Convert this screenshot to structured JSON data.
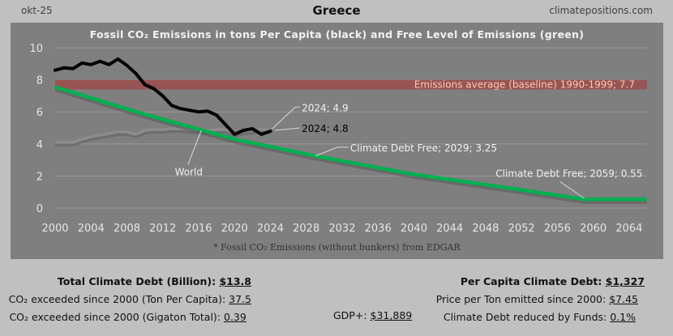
{
  "header": {
    "date": "okt-25",
    "country": "Greece",
    "site": "climatepositions.com"
  },
  "colors": {
    "panel": "#7f7f7f",
    "greece_line": "#000000",
    "world_line": "#8c8c8c",
    "free_line": "#00b050",
    "baseline_band": "#9b5050",
    "baseline_text": "#f8cbad"
  },
  "chart_data": {
    "type": "line",
    "title": "Fossil CO₂ Emissions in tons Per Capita (black) and Free Level of Emissions (green)",
    "xlabel": "",
    "ylabel": "",
    "xlim": [
      2000,
      2066
    ],
    "ylim": [
      0,
      10
    ],
    "x_ticks": [
      "2000",
      "2004",
      "2008",
      "2012",
      "2016",
      "2020",
      "2024",
      "2028",
      "2032",
      "2036",
      "2040",
      "2044",
      "2048",
      "2052",
      "2056",
      "2060",
      "2064"
    ],
    "y_ticks": [
      "0",
      "2",
      "4",
      "6",
      "8",
      "10"
    ],
    "grid": true,
    "series": [
      {
        "name": "Greece",
        "color": "#000000",
        "x": [
          2000,
          2001,
          2002,
          2003,
          2004,
          2005,
          2006,
          2007,
          2008,
          2009,
          2010,
          2011,
          2012,
          2013,
          2014,
          2015,
          2016,
          2017,
          2018,
          2019,
          2020,
          2021,
          2022,
          2023,
          2024
        ],
        "y": [
          8.6,
          8.75,
          8.7,
          9.05,
          8.95,
          9.15,
          8.95,
          9.3,
          8.9,
          8.4,
          7.7,
          7.45,
          7.0,
          6.4,
          6.2,
          6.1,
          6.0,
          6.05,
          5.8,
          5.2,
          4.6,
          4.85,
          4.95,
          4.6,
          4.8
        ]
      },
      {
        "name": "World",
        "color": "#8c8c8c",
        "x": [
          2000,
          2001,
          2002,
          2003,
          2004,
          2005,
          2006,
          2007,
          2008,
          2009,
          2010,
          2011,
          2012,
          2013,
          2014,
          2015,
          2016,
          2017,
          2018,
          2019,
          2020,
          2021,
          2022,
          2023,
          2024
        ],
        "y": [
          4.1,
          4.1,
          4.1,
          4.3,
          4.45,
          4.55,
          4.65,
          4.75,
          4.75,
          4.6,
          4.85,
          4.9,
          4.9,
          4.95,
          4.95,
          4.9,
          4.85,
          4.85,
          4.9,
          4.9,
          4.65,
          4.8,
          4.85,
          4.9,
          4.9
        ]
      },
      {
        "name": "Free Level of Emissions",
        "color": "#00b050",
        "x": [
          2000,
          2010,
          2020,
          2029,
          2040,
          2050,
          2059,
          2066
        ],
        "y": [
          7.55,
          5.85,
          4.3,
          3.25,
          2.1,
          1.3,
          0.55,
          0.55
        ]
      }
    ],
    "baseline": {
      "label": "Emissions average (baseline) 1990-1999; 7.7",
      "value": 7.7
    },
    "annotations": [
      {
        "id": "world",
        "text": "World",
        "x": 2016,
        "y": 4.9
      },
      {
        "id": "world2024",
        "text": "2024; 4.9",
        "x": 2024,
        "y": 4.9
      },
      {
        "id": "greece2024",
        "text": "2024; 4.8",
        "x": 2024,
        "y": 4.8
      },
      {
        "id": "free2029",
        "text": "Climate Debt Free; 2029; 3.25",
        "x": 2029,
        "y": 3.25
      },
      {
        "id": "free2059",
        "text": "Climate Debt Free; 2059; 0.55",
        "x": 2059,
        "y": 0.55
      }
    ],
    "footnote": "* Fossil CO₂ Emissions (without bunkers) from EDGAR"
  },
  "stats": {
    "total_debt_label": "Total Climate Debt (Billion):",
    "total_debt_value": "$13.8",
    "per_capita_exceeded_label": "CO₂ exceeded since 2000 (Ton Per Capita):",
    "per_capita_exceeded_value": "37.5",
    "gigaton_exceeded_label": "CO₂ exceeded since 2000 (Gigaton Total):",
    "gigaton_exceeded_value": "0.39",
    "gdp_label": "GDP+:",
    "gdp_value": "$31,889",
    "per_capita_debt_label": "Per Capita Climate Debt:",
    "per_capita_debt_value": "$1,327",
    "price_per_ton_label": "Price per Ton emitted since 2000:",
    "price_per_ton_value": "$7.45",
    "funds_label": "Climate Debt reduced by Funds:",
    "funds_value": "0.1%"
  }
}
